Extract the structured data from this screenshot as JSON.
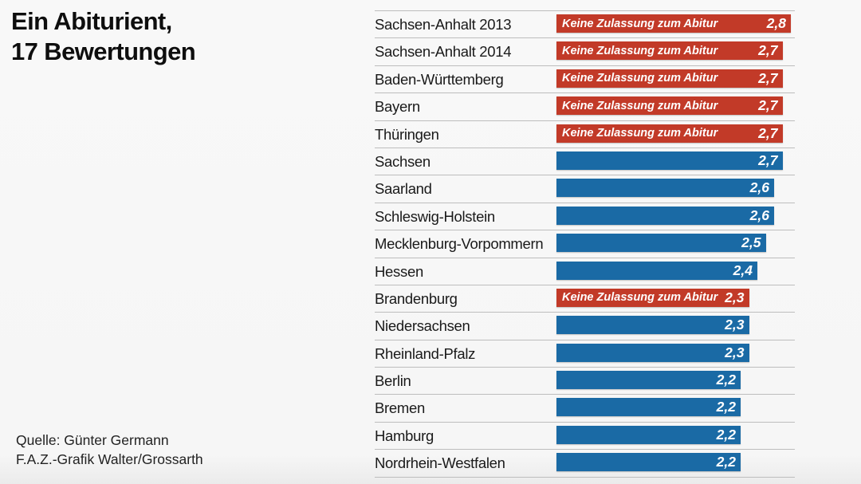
{
  "title": {
    "line1": "Ein Abiturient,",
    "line2": "17 Bewertungen"
  },
  "source": {
    "line1": "Quelle: Günter Germann",
    "line2": "F.A.Z.-Grafik Walter/Grossarth"
  },
  "chart_data": {
    "type": "bar",
    "orientation": "horizontal",
    "title": "Ein Abiturient, 17 Bewertungen",
    "xlim": [
      0,
      2.8
    ],
    "grid": false,
    "flag_label": "Keine Zulassung zum Abitur",
    "categories": [
      "Sachsen-Anhalt 2013",
      "Sachsen-Anhalt 2014",
      "Baden-Württemberg",
      "Bayern",
      "Thüringen",
      "Sachsen",
      "Saarland",
      "Schleswig-Holstein",
      "Mecklenburg-Vorpommern",
      "Hessen",
      "Brandenburg",
      "Niedersachsen",
      "Rheinland-Pfalz",
      "Berlin",
      "Bremen",
      "Hamburg",
      "Nordrhein-Westfalen"
    ],
    "values": [
      2.8,
      2.7,
      2.7,
      2.7,
      2.7,
      2.7,
      2.6,
      2.6,
      2.5,
      2.4,
      2.3,
      2.3,
      2.3,
      2.2,
      2.2,
      2.2,
      2.2
    ],
    "display_values": [
      "2,8",
      "2,7",
      "2,7",
      "2,7",
      "2,7",
      "2,7",
      "2,6",
      "2,6",
      "2,5",
      "2,4",
      "2,3",
      "2,3",
      "2,3",
      "2,2",
      "2,2",
      "2,2",
      "2,2"
    ],
    "flagged": [
      true,
      true,
      true,
      true,
      true,
      false,
      false,
      false,
      false,
      false,
      true,
      false,
      false,
      false,
      false,
      false,
      false
    ],
    "colors": {
      "flagged": "#c23a28",
      "normal": "#1a6aa5",
      "separator": "#bdbdbd",
      "background": "#f7f7f7",
      "label_text": "#1a1a1a",
      "bar_text": "#ffffff"
    }
  }
}
